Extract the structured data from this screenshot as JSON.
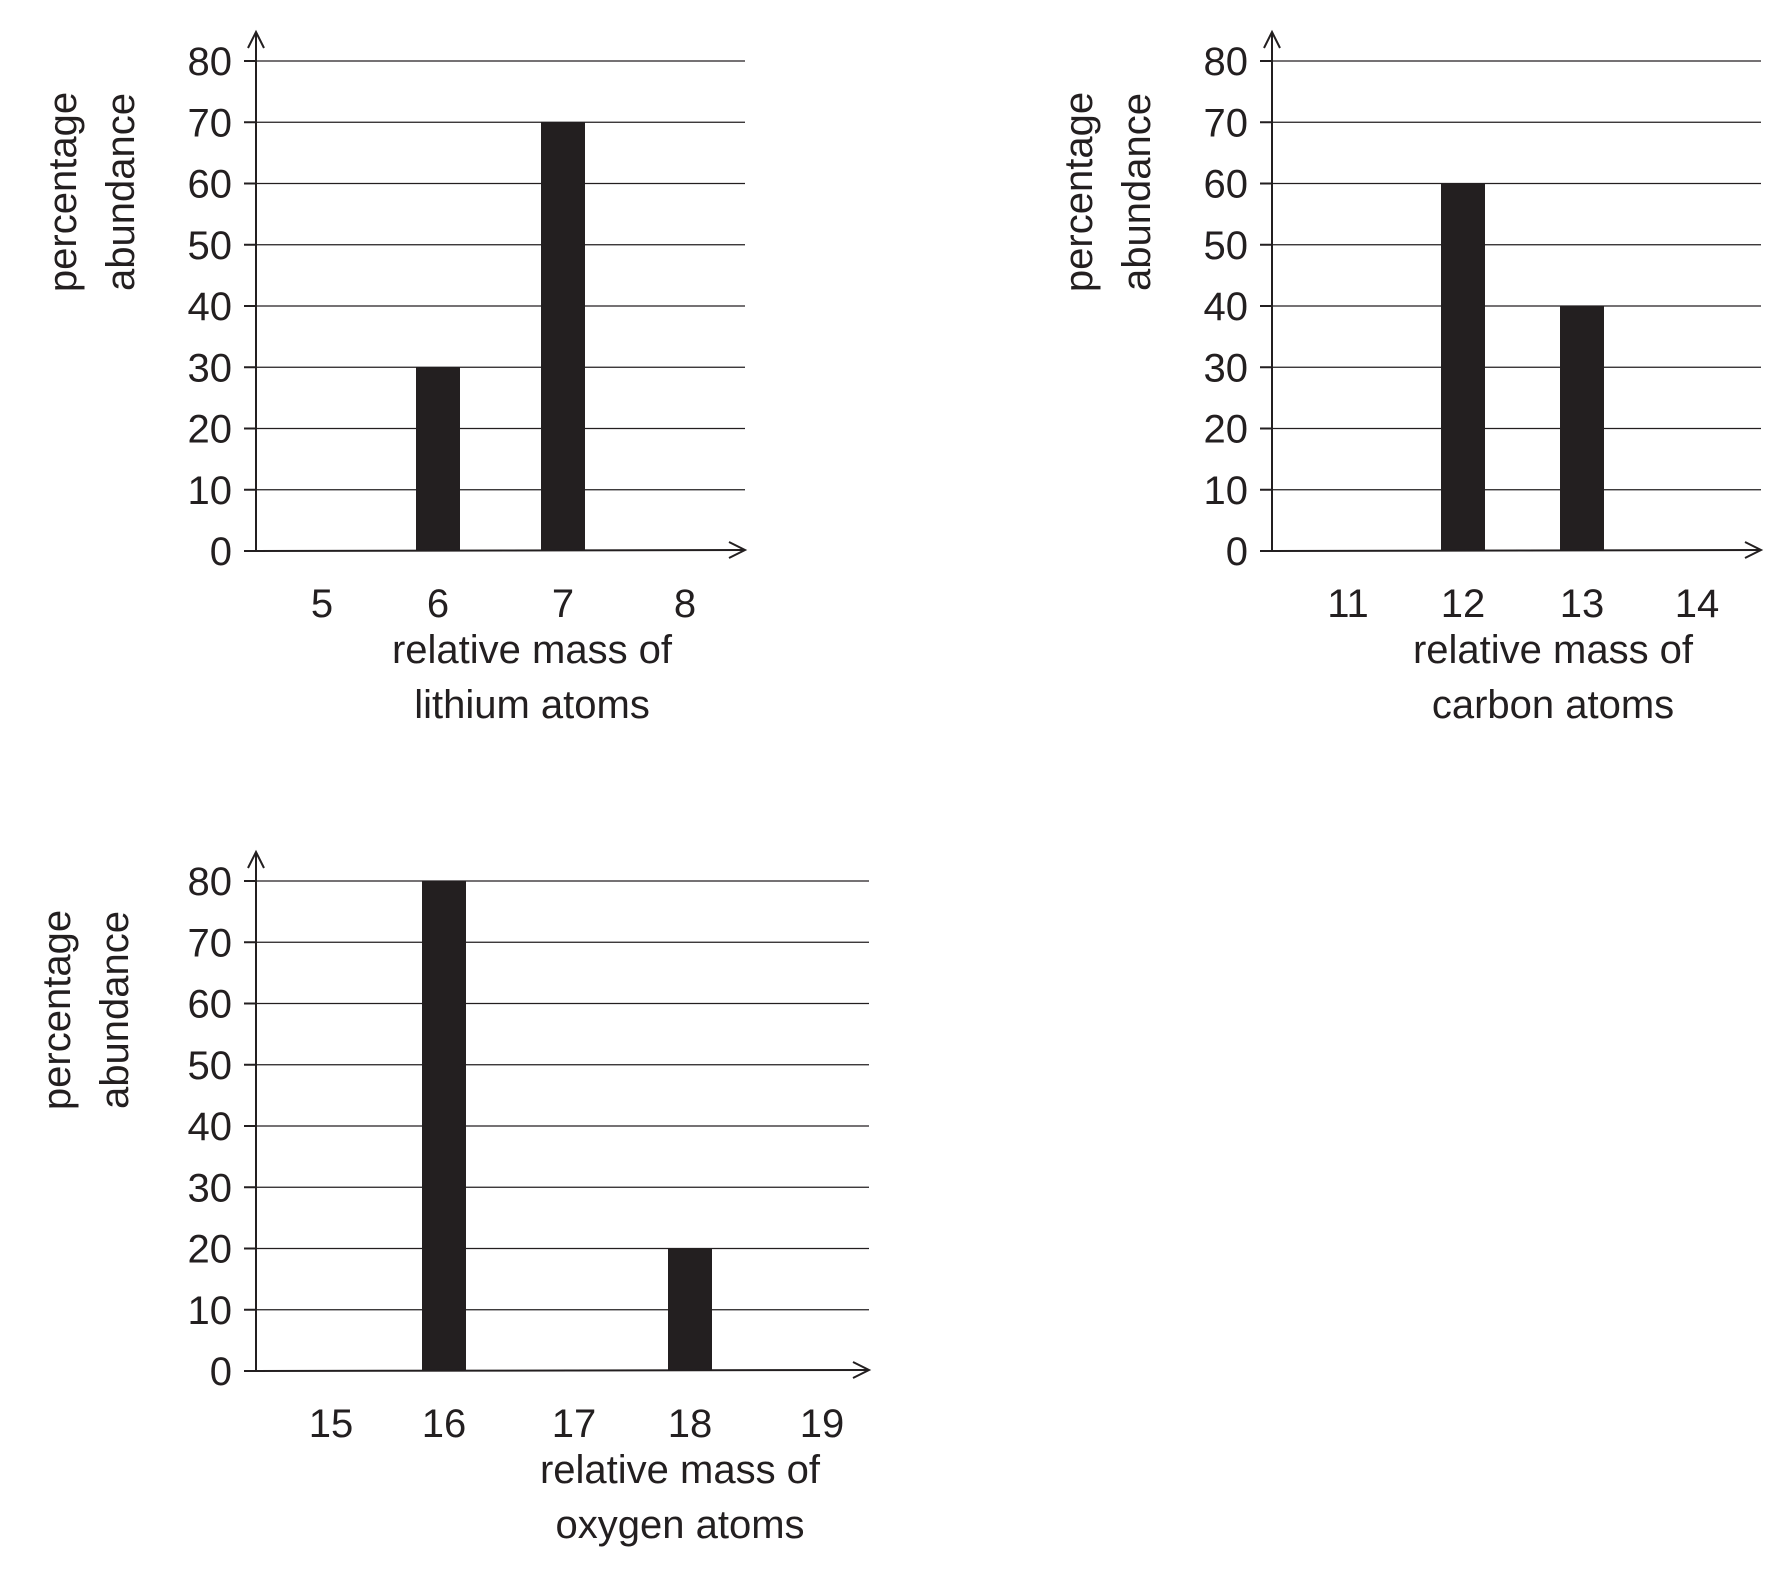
{
  "chart_data": [
    {
      "type": "bar",
      "categories": [
        "5",
        "6",
        "7",
        "8"
      ],
      "values": [
        0,
        30,
        70,
        0
      ],
      "xlabel": [
        "relative mass of",
        "lithium atoms"
      ],
      "ylabel": [
        "percentage",
        "abundance"
      ],
      "yticks": [
        "0",
        "10",
        "20",
        "30",
        "40",
        "50",
        "60",
        "70",
        "80"
      ],
      "ylim": [
        0,
        80
      ],
      "grid": true,
      "bar_color": "#231f20"
    },
    {
      "type": "bar",
      "categories": [
        "11",
        "12",
        "13",
        "14"
      ],
      "values": [
        0,
        60,
        40,
        0
      ],
      "xlabel": [
        "relative mass of",
        "carbon atoms"
      ],
      "ylabel": [
        "percentage",
        "abundance"
      ],
      "yticks": [
        "0",
        "10",
        "20",
        "30",
        "40",
        "50",
        "60",
        "70",
        "80"
      ],
      "ylim": [
        0,
        80
      ],
      "grid": true,
      "bar_color": "#231f20"
    },
    {
      "type": "bar",
      "categories": [
        "15",
        "16",
        "17",
        "18",
        "19"
      ],
      "values": [
        0,
        80,
        0,
        20,
        0
      ],
      "xlabel": [
        "relative mass of",
        "oxygen atoms"
      ],
      "ylabel": [
        "percentage",
        "abundance"
      ],
      "yticks": [
        "0",
        "10",
        "20",
        "30",
        "40",
        "50",
        "60",
        "70",
        "80"
      ],
      "ylim": [
        0,
        80
      ],
      "grid": true,
      "bar_color": "#231f20"
    }
  ]
}
